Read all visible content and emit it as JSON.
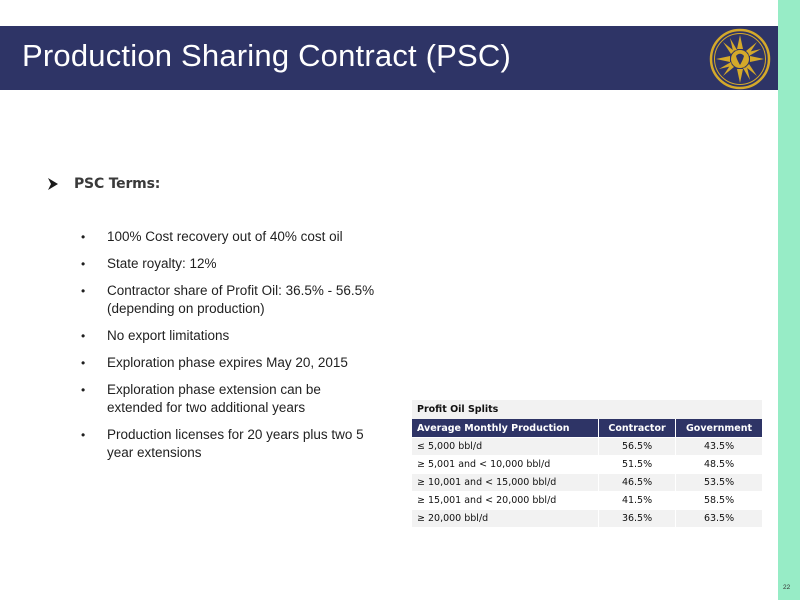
{
  "header": {
    "title": "Production Sharing Contract (PSC)",
    "logo_icon": "sunburst-logo-icon",
    "background_color": "#2e3466"
  },
  "terms": {
    "heading": "PSC Terms:",
    "heading_icon": "arrow-bullet-icon",
    "bullet_glyph": "•",
    "items": [
      "100% Cost recovery out of 40% cost oil",
      "State royalty: 12%",
      "Contractor share of Profit Oil: 36.5% - 56.5% (depending on production)",
      "No export limitations",
      "Exploration phase expires May 20, 2015",
      "Exploration phase extension can be extended for two additional years",
      "Production licenses for 20 years plus two 5 year extensions"
    ]
  },
  "profit_oil_table": {
    "caption": "Profit Oil Splits",
    "headers": [
      "Average Monthly Production",
      "Contractor",
      "Government"
    ],
    "rows": [
      [
        "≤ 5,000 bbl/d",
        "56.5%",
        "43.5%"
      ],
      [
        "≥ 5,001 and < 10,000 bbl/d",
        "51.5%",
        "48.5%"
      ],
      [
        "≥ 10,001 and < 15,000 bbl/d",
        "46.5%",
        "53.5%"
      ],
      [
        "≥ 15,001 and < 20,000 bbl/d",
        "41.5%",
        "58.5%"
      ],
      [
        "≥ 20,000 bbl/d",
        "36.5%",
        "63.5%"
      ]
    ]
  },
  "footer": {
    "page_number": "22"
  },
  "colors": {
    "accent_navy": "#2e3466",
    "side_stripe": "#97ecc6",
    "logo_gold": "#d4a92a"
  }
}
